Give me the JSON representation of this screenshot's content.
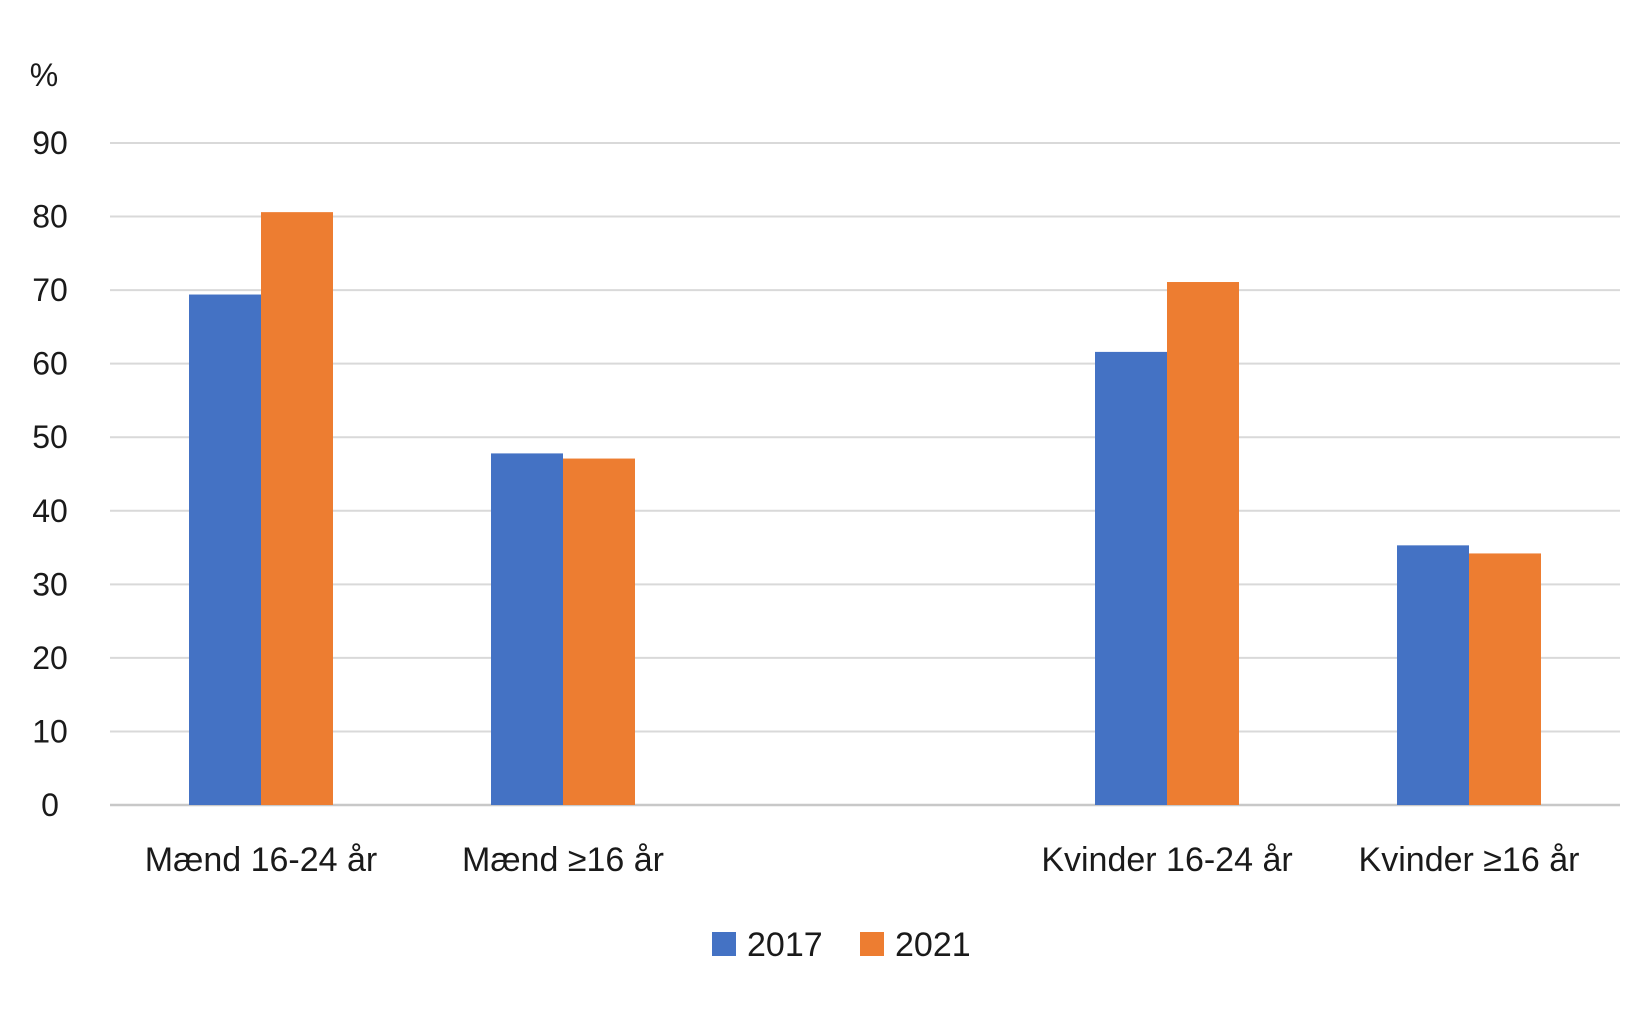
{
  "chart_data": {
    "type": "bar",
    "ylabel": "%",
    "ylim": [
      0,
      90
    ],
    "yticks": [
      0,
      10,
      20,
      30,
      40,
      50,
      60,
      70,
      80,
      90
    ],
    "categories": [
      "Mænd 16-24 år",
      "Mænd ≥16 år",
      "",
      "Kvinder 16-24 år",
      "Kvinder ≥16 år"
    ],
    "series": [
      {
        "name": "2017",
        "color": "#4472C4",
        "values": [
          69.4,
          47.8,
          null,
          61.6,
          35.3
        ]
      },
      {
        "name": "2021",
        "color": "#ED7D31",
        "values": [
          80.6,
          47.1,
          null,
          71.1,
          34.2
        ]
      }
    ],
    "grid": true,
    "legend": "bottom"
  }
}
